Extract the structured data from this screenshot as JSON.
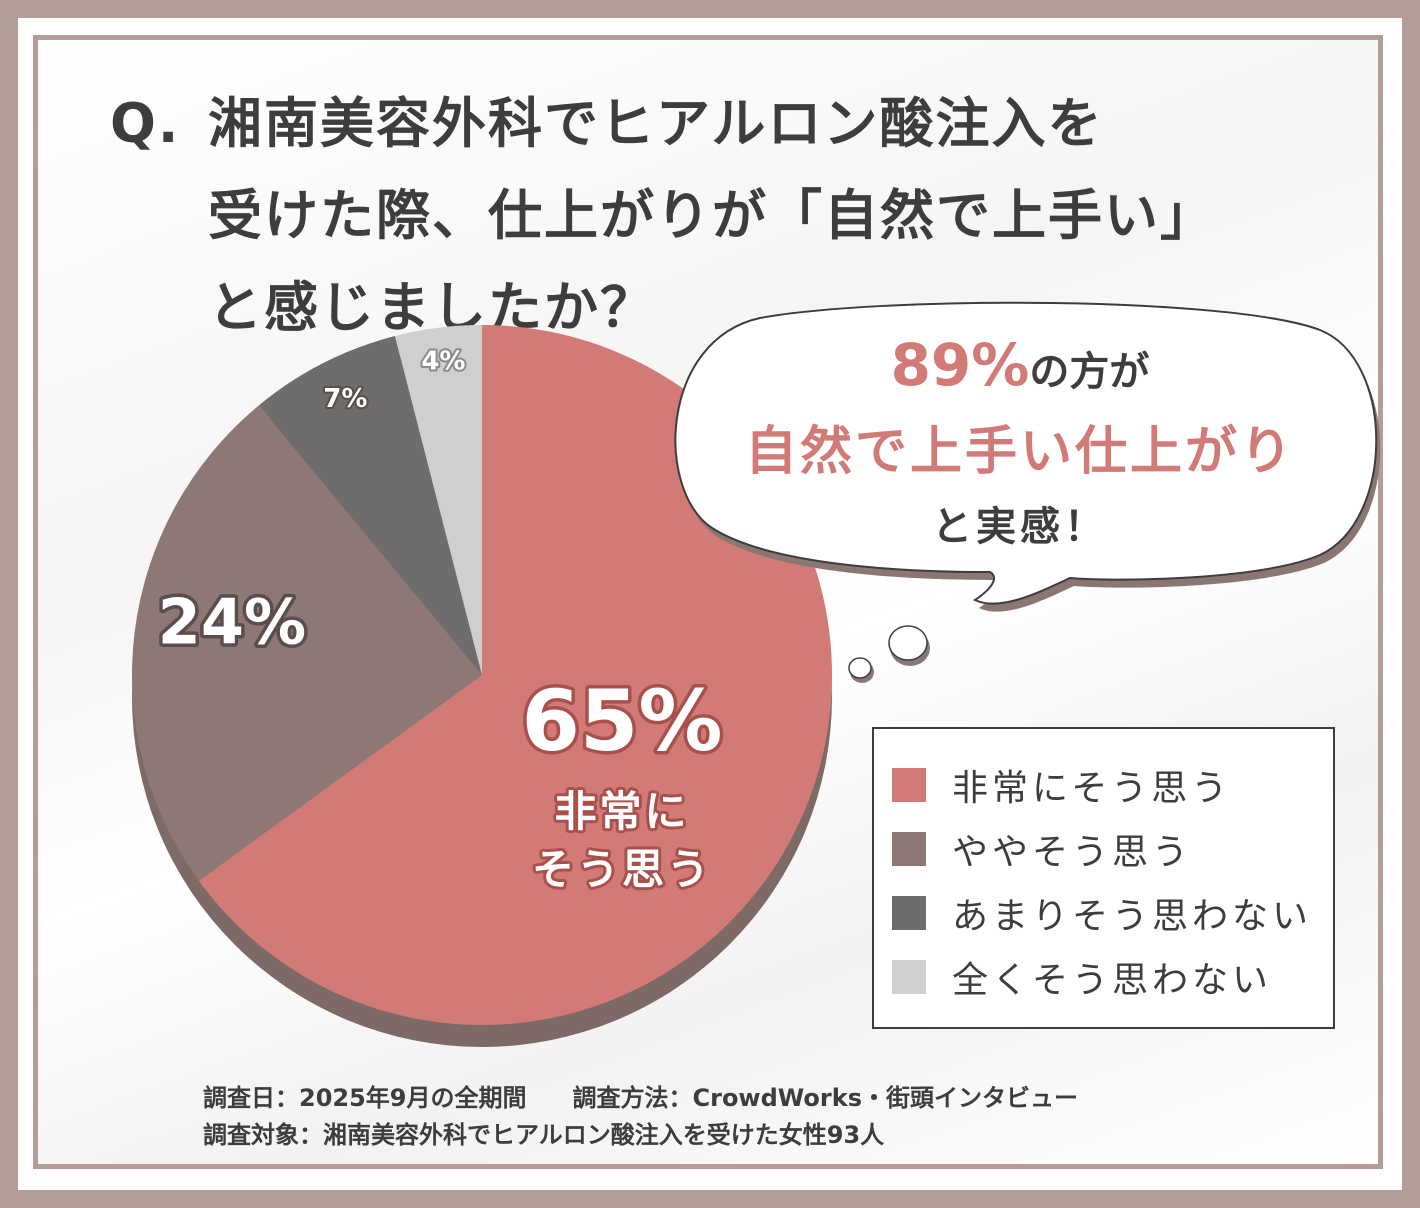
{
  "question": {
    "prefix": "Q.",
    "line1": "湘南美容外科でヒアルロン酸注入を",
    "line2": "受けた際、仕上がりが「自然で上手い」",
    "line3": "と感じましたか？"
  },
  "bubble": {
    "percent": "89%",
    "line1_rest": "の方が",
    "line2": "自然で上手い仕上がり",
    "line3": "と実感！"
  },
  "chart_data": {
    "type": "pie",
    "start_angle_deg": 0,
    "direction": "clockwise",
    "slices": [
      {
        "label": "非常にそう思う",
        "value": 65,
        "display": "65%",
        "color": "#d27a76"
      },
      {
        "label": "ややそう思う",
        "value": 24,
        "display": "24%",
        "color": "#8e7876"
      },
      {
        "label": "あまりそう思わない",
        "value": 7,
        "display": "7%",
        "color": "#6f6c6c"
      },
      {
        "label": "全くそう思わない",
        "value": 4,
        "display": "4%",
        "color": "#cfcfcf"
      }
    ],
    "inner_label": {
      "line1": "非常に",
      "line2": "そう思う"
    },
    "legend_placement": "bottom-right"
  },
  "footer": {
    "date": "調査日：2025年9月の全期間",
    "method": "調査方法：CrowdWorks・街頭インタビュー",
    "target": "調査対象：湘南美容外科でヒアルロン酸注入を受けた女性93人"
  },
  "colors": {
    "frame": "#b39d97",
    "accent": "#d27a76",
    "text": "#3f3c3d"
  }
}
